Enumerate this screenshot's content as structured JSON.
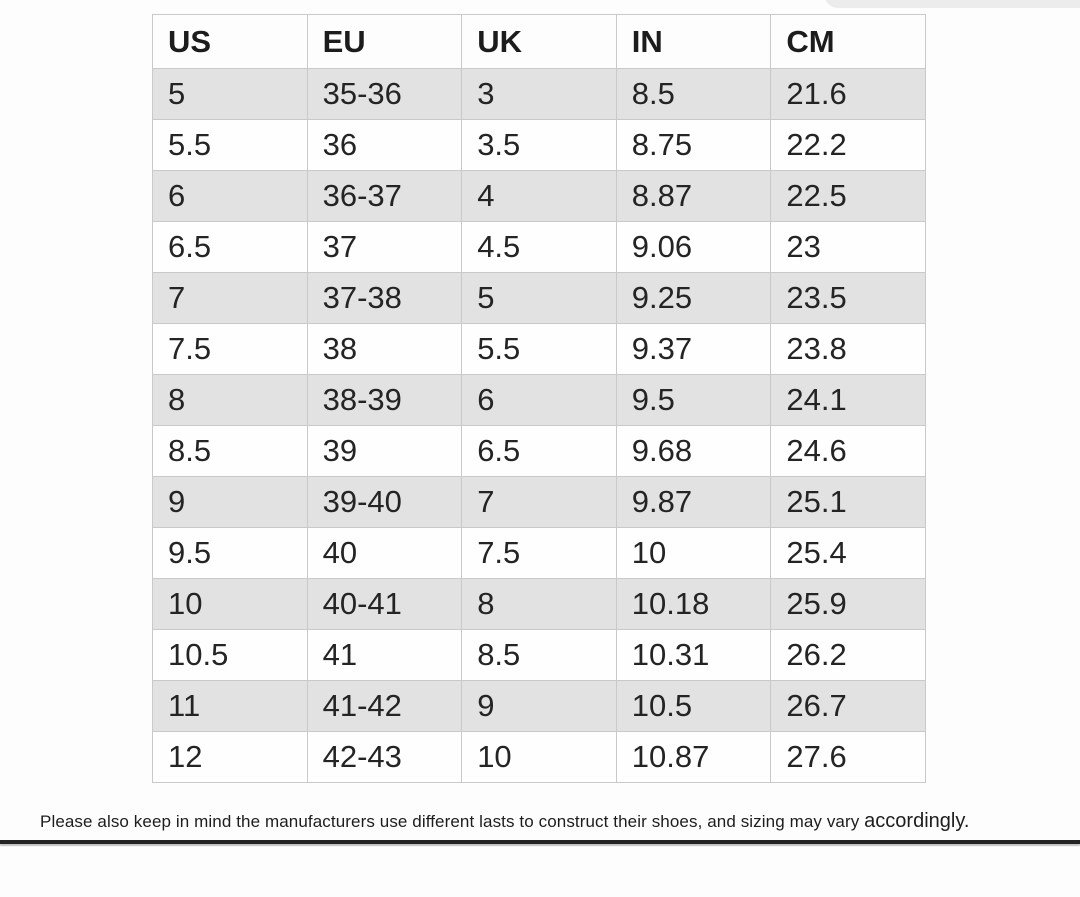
{
  "chart_data": {
    "type": "table",
    "columns": [
      "US",
      "EU",
      "UK",
      "IN",
      "CM"
    ],
    "rows": [
      [
        "5",
        "35-36",
        "3",
        "8.5",
        "21.6"
      ],
      [
        "5.5",
        "36",
        "3.5",
        "8.75",
        "22.2"
      ],
      [
        "6",
        "36-37",
        "4",
        "8.87",
        "22.5"
      ],
      [
        "6.5",
        "37",
        "4.5",
        "9.06",
        "23"
      ],
      [
        "7",
        "37-38",
        "5",
        "9.25",
        "23.5"
      ],
      [
        "7.5",
        "38",
        "5.5",
        "9.37",
        "23.8"
      ],
      [
        "8",
        "38-39",
        "6",
        "9.5",
        "24.1"
      ],
      [
        "8.5",
        "39",
        "6.5",
        "9.68",
        "24.6"
      ],
      [
        "9",
        "39-40",
        "7",
        "9.87",
        "25.1"
      ],
      [
        "9.5",
        "40",
        "7.5",
        "10",
        "25.4"
      ],
      [
        "10",
        "40-41",
        "8",
        "10.18",
        "25.9"
      ],
      [
        "10.5",
        "41",
        "8.5",
        "10.31",
        "26.2"
      ],
      [
        "11",
        "41-42",
        "9",
        "10.5",
        "26.7"
      ],
      [
        "12",
        "42-43",
        "10",
        "10.87",
        "27.6"
      ]
    ],
    "layout": {
      "alternating_rows": true,
      "row_alt_color": "#e2e2e2",
      "border_color": "#c9c9c9",
      "text_color": "#242424"
    }
  },
  "footnote": {
    "text": "Please also keep in mind the manufacturers use different lasts to construct their shoes, and sizing may vary",
    "emphasis": "accordingly."
  },
  "colors": {
    "background": "#fdfdfd",
    "bottom_rule": "#232323"
  }
}
